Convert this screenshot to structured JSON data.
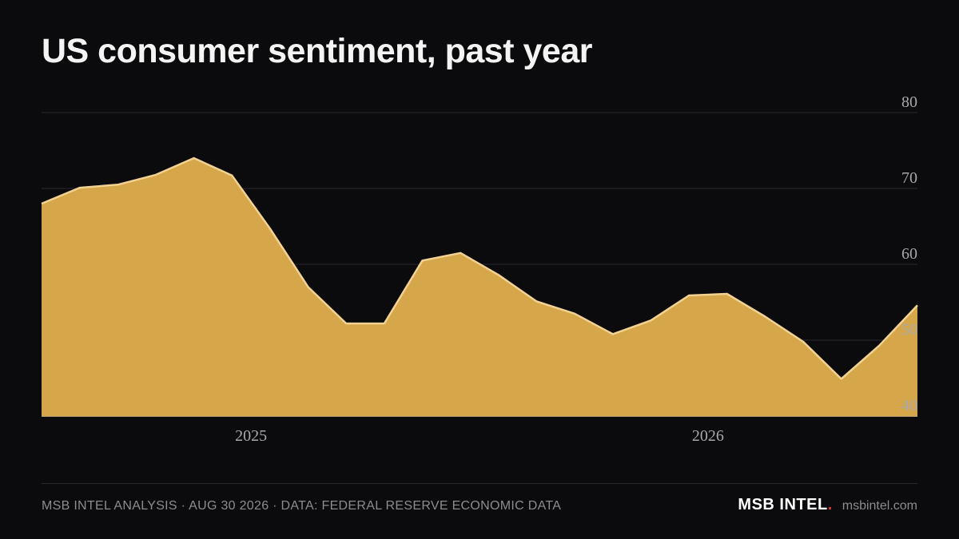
{
  "title": "US consumer sentiment, past year",
  "footer": {
    "source_text": "MSB INTEL ANALYSIS · AUG 30 2026 · DATA: FEDERAL RESERVE ECONOMIC DATA",
    "brand": "MSB INTEL",
    "brand_dot": ".",
    "site": "msbintel.com"
  },
  "colors": {
    "background": "#0b0b0d",
    "area_fill": "#d6a64a",
    "area_line": "#f2d293",
    "grid": "#2a2a2e",
    "brand_accent": "#d63a2f"
  },
  "chart_data": {
    "type": "area",
    "x_tick_labels": [
      "2025",
      "2026"
    ],
    "y_ticks": [
      40,
      50,
      60,
      70,
      80
    ],
    "ylim": [
      40,
      80
    ],
    "y_axis_side": "right",
    "grid": true,
    "series": [
      {
        "values": [
          68.0,
          70.1,
          70.5,
          71.8,
          74.0,
          71.7,
          64.7,
          57.0,
          52.2,
          52.2,
          60.5,
          61.5,
          58.6,
          55.1,
          53.5,
          50.8,
          52.6,
          55.9,
          56.1,
          53.1,
          49.8,
          44.9,
          49.3,
          54.6
        ]
      }
    ]
  }
}
